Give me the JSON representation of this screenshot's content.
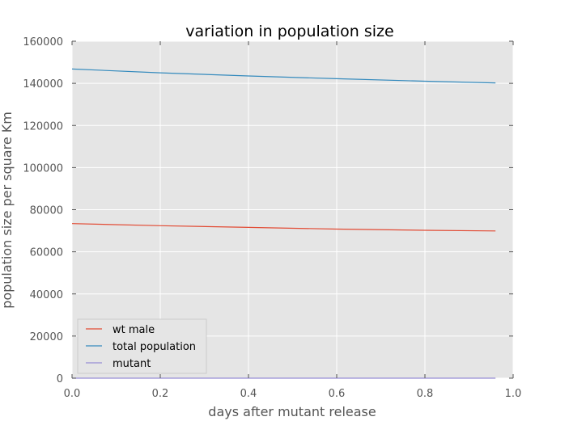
{
  "chart_data": {
    "type": "line",
    "title": "variation in population size",
    "xlabel": "days after mutant release",
    "ylabel": "population size per square Km",
    "xlim": [
      0.0,
      1.0
    ],
    "ylim": [
      0,
      160000
    ],
    "x_ticks": [
      0.0,
      0.2,
      0.4,
      0.6,
      0.8,
      1.0
    ],
    "x_tick_labels": [
      "0.0",
      "0.2",
      "0.4",
      "0.6",
      "0.8",
      "1.0"
    ],
    "y_ticks": [
      0,
      20000,
      40000,
      60000,
      80000,
      100000,
      120000,
      140000,
      160000
    ],
    "y_tick_labels": [
      "0",
      "20000",
      "40000",
      "60000",
      "80000",
      "100000",
      "120000",
      "140000",
      "160000"
    ],
    "grid": true,
    "legend_position": "lower-left",
    "background_color": "#e5e5e5",
    "grid_color": "#ffffff",
    "x": [
      0.0,
      0.2,
      0.4,
      0.6,
      0.8,
      0.96
    ],
    "series": [
      {
        "name": "wt male",
        "color": "#e24a33",
        "values": [
          73400,
          72400,
          71600,
          70800,
          70200,
          69900
        ]
      },
      {
        "name": "total population",
        "color": "#348abd",
        "values": [
          146800,
          145000,
          143500,
          142200,
          141000,
          140200
        ]
      },
      {
        "name": "mutant",
        "color": "#988ed5",
        "values": [
          0,
          0,
          0,
          0,
          0,
          0
        ]
      }
    ]
  }
}
